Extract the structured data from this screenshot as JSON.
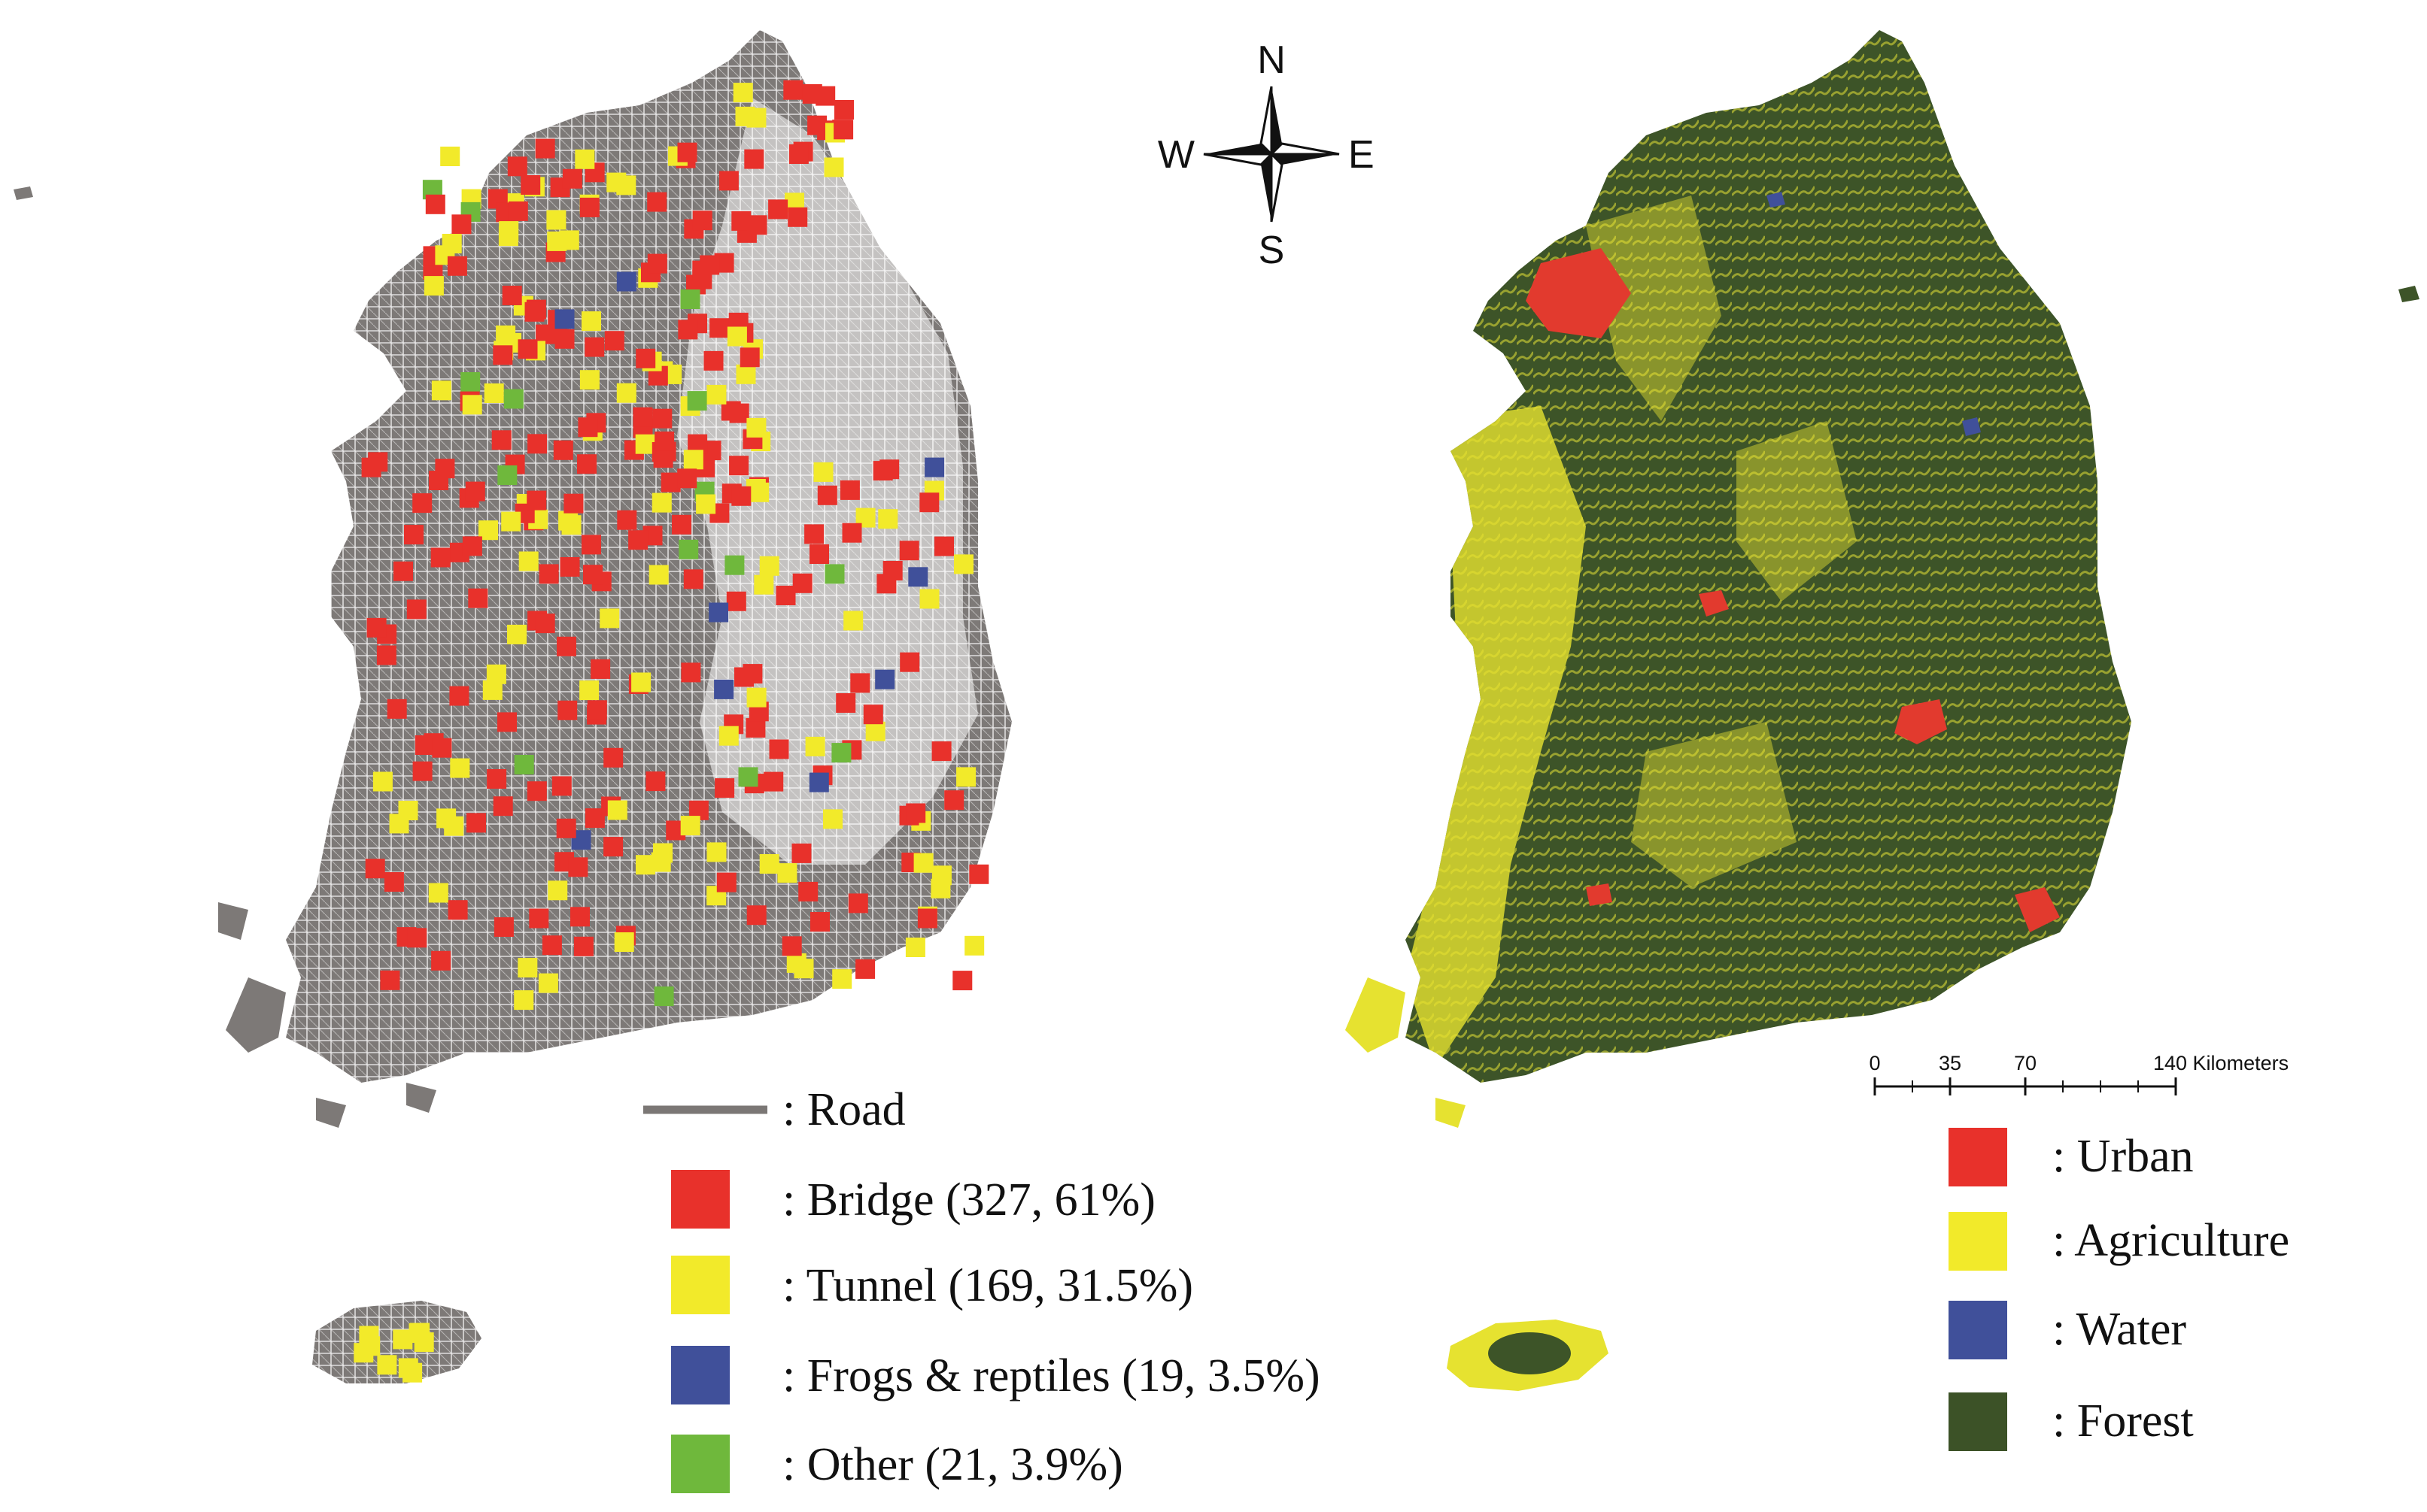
{
  "compass": {
    "north": "N",
    "south": "S",
    "east": "E",
    "west": "W"
  },
  "left_legend": {
    "road": {
      "label": ": Road",
      "color": "#7b7775"
    },
    "items": [
      {
        "label": ": Bridge (327, 61%)",
        "color": "#e8312b"
      },
      {
        "label": ": Tunnel (169, 31.5%)",
        "color": "#f2ea2a"
      },
      {
        "label": ": Frogs & reptiles (19, 3.5%)",
        "color": "#40509a"
      },
      {
        "label": ": Other (21, 3.9%)",
        "color": "#6fb83c"
      }
    ]
  },
  "right_legend": {
    "items": [
      {
        "label": ": Urban",
        "color": "#e8312b"
      },
      {
        "label": ": Agriculture",
        "color": "#f2ea2a"
      },
      {
        "label": ": Water",
        "color": "#40509a"
      },
      {
        "label": ": Forest",
        "color": "#3c5227"
      }
    ]
  },
  "scale_bar": {
    "ticks": [
      "0",
      "35",
      "70"
    ],
    "end_label": "140 Kilometers"
  }
}
